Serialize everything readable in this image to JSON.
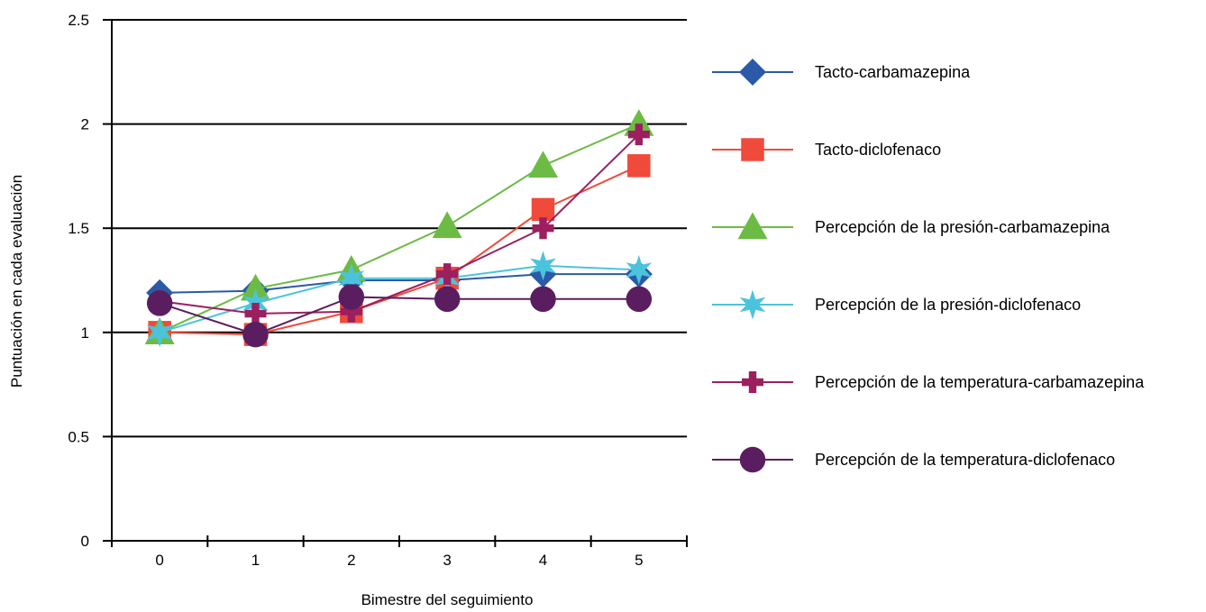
{
  "chart_data": {
    "type": "line",
    "xlabel": "Bimestre del seguimiento",
    "ylabel": "Puntuación en cada evaluación",
    "ylim": [
      0,
      2.5
    ],
    "yticks": [
      "0",
      "0.5",
      "1",
      "1.5",
      "2",
      "2.5"
    ],
    "categories": [
      "0",
      "1",
      "2",
      "3",
      "4",
      "5"
    ],
    "grid": "horizontal",
    "legend_position": "right",
    "series": [
      {
        "name": "Tacto-carbamazepina",
        "values": [
          1.19,
          1.2,
          1.25,
          1.25,
          1.28,
          1.28
        ],
        "color": "#2a5aa8",
        "marker": "diamond"
      },
      {
        "name": "Tacto-diclofenaco",
        "values": [
          1.0,
          0.99,
          1.1,
          1.26,
          1.59,
          1.8
        ],
        "color": "#f04a3a",
        "marker": "square"
      },
      {
        "name": "Percepción de la presión-carbamazepina",
        "values": [
          1.0,
          1.21,
          1.3,
          1.51,
          1.8,
          2.0
        ],
        "color": "#6cbb45",
        "marker": "triangle"
      },
      {
        "name": "Percepción de la presión-diclofenaco",
        "values": [
          1.0,
          1.14,
          1.26,
          1.26,
          1.32,
          1.3
        ],
        "color": "#4cc3dd",
        "marker": "star"
      },
      {
        "name": "Percepción de la temperatura-carbamazepina",
        "values": [
          1.15,
          1.09,
          1.1,
          1.28,
          1.5,
          1.95
        ],
        "color": "#9c1f5f",
        "marker": "plus"
      },
      {
        "name": "Percepción de la temperatura-diclofenaco",
        "values": [
          1.14,
          0.99,
          1.17,
          1.16,
          1.16,
          1.16
        ],
        "color": "#5a1e60",
        "marker": "circle"
      }
    ]
  }
}
